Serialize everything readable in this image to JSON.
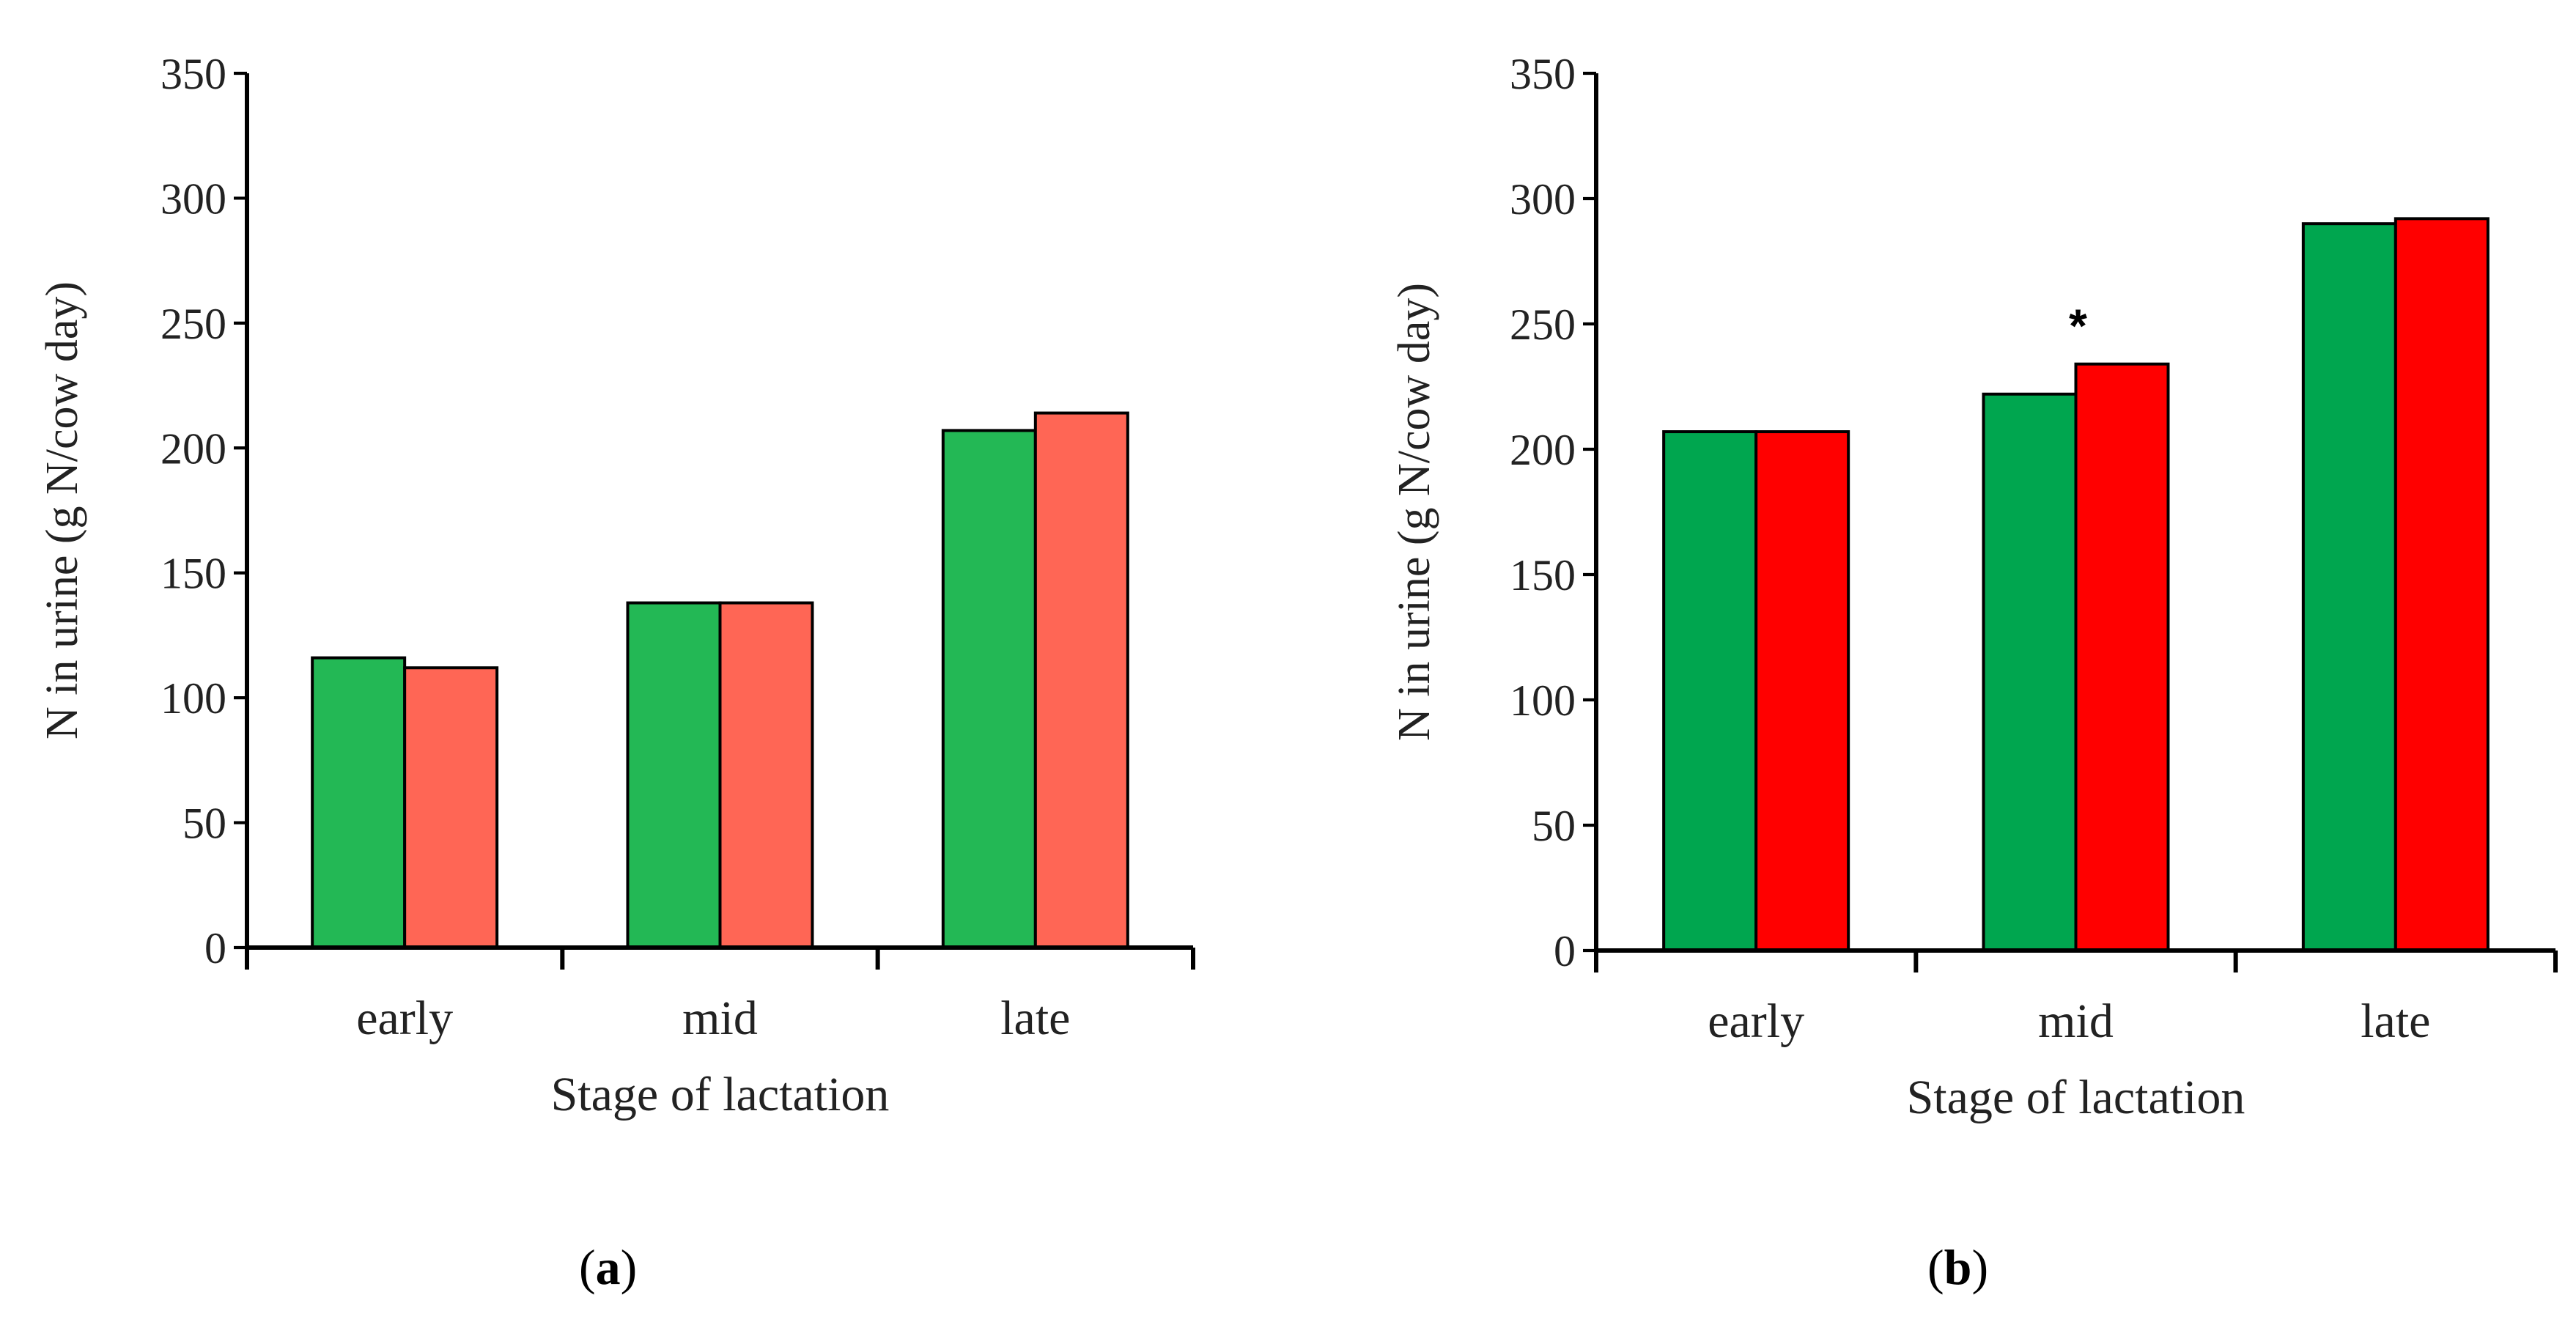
{
  "chart_data": [
    {
      "type": "bar",
      "panel_label": "a",
      "title": "",
      "xlabel": "Stage of lactation",
      "ylabel": "N in urine (g N/cow day)",
      "categories": [
        "early",
        "mid",
        "late"
      ],
      "ylim": [
        0,
        350
      ],
      "yticks": [
        0,
        50,
        100,
        150,
        200,
        250,
        300,
        350
      ],
      "grid": false,
      "series": [
        {
          "name": "series-1",
          "color": "#23b855",
          "values": [
            116,
            138,
            207
          ]
        },
        {
          "name": "series-2",
          "color": "#ff6655",
          "values": [
            112,
            138,
            214
          ]
        }
      ],
      "annotations": []
    },
    {
      "type": "bar",
      "panel_label": "b",
      "title": "",
      "xlabel": "Stage of lactation",
      "ylabel": "N in urine (g N/cow day)",
      "categories": [
        "early",
        "mid",
        "late"
      ],
      "ylim": [
        0,
        350
      ],
      "yticks": [
        0,
        50,
        100,
        150,
        200,
        250,
        300,
        350
      ],
      "grid": false,
      "series": [
        {
          "name": "series-1",
          "color": "#00a64f",
          "values": [
            207,
            222,
            290
          ]
        },
        {
          "name": "series-2",
          "color": "#ff0000",
          "values": [
            207,
            234,
            292
          ]
        }
      ],
      "annotations": [
        {
          "text": "*",
          "category": "mid",
          "series": "series-2"
        }
      ]
    }
  ]
}
